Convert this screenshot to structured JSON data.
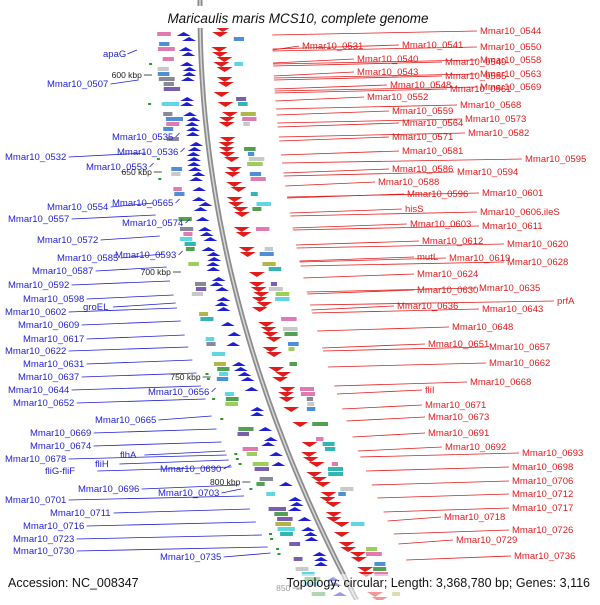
{
  "title": "Maricaulis maris MCS10, complete genome",
  "accession": "Accession: NC_008347",
  "topology": "Topology: circular; Length: 3,368,780 bp; Genes: 3,116",
  "colors": {
    "forward": "#1f1fd2",
    "reverse": "#e21b1b",
    "backbone": "#8c8c8c"
  },
  "ticks": [
    "600 kbp",
    "650 kbp",
    "700 kbp",
    "750 kbp",
    "800 kbp",
    "850"
  ],
  "left_labels": [
    "apaG",
    "Mmar10_0507",
    "Mmar10_0535",
    "Mmar10_0532",
    "Mmar10_0536",
    "Mmar10_0553",
    "Mmar10_0554",
    "Mmar10_0565",
    "Mmar10_0557",
    "Mmar10_0574",
    "Mmar10_0572",
    "Mmar10_0585",
    "Mmar10_0593",
    "Mmar10_0587",
    "Mmar10_0592",
    "Mmar10_0598",
    "groEL",
    "Mmar10_0602",
    "Mmar10_0609",
    "Mmar10_0617",
    "Mmar10_0622",
    "Mmar10_0631",
    "Mmar10_0637",
    "Mmar10_0644",
    "Mmar10_0656",
    "Mmar10_0652",
    "Mmar10_0665",
    "Mmar10_0669",
    "Mmar10_0674",
    "Mmar10_0678",
    "flhA",
    "fliH",
    "fliG-fliF",
    "Mmar10_0690",
    "Mmar10_0696",
    "Mmar10_0703",
    "Mmar10_0701",
    "Mmar10_0711",
    "Mmar10_0716",
    "Mmar10_0723",
    "Mmar10_0730",
    "Mmar10_0735"
  ],
  "right_labels": [
    "Mmar10_0544",
    "Mmar10_0531",
    "Mmar10_0541",
    "Mmar10_0550",
    "Mmar10_0540",
    "Mmar10_0549",
    "Mmar10_0558",
    "Mmar10_0543",
    "Mmar10_0555",
    "Mmar10_0563",
    "Mmar10_0548",
    "Mmar10_0569",
    "Mmar10_0561",
    "Mmar10_0552",
    "Mmar10_0568",
    "Mmar10_0559",
    "Mmar10_0573",
    "Mmar10_0564",
    "Mmar10_0582",
    "Mmar10_0571",
    "Mmar10_0581",
    "Mmar10_0595",
    "Mmar10_0586",
    "Mmar10_0594",
    "Mmar10_0588",
    "Mmar10_0596",
    "Mmar10_0601",
    "hisS",
    "Mmar10_0606.ileS",
    "Mmar10_0603",
    "Mmar10_0611",
    "Mmar10_0612",
    "Mmar10_0620",
    "mutL",
    "Mmar10_0619",
    "Mmar10_0628",
    "Mmar10_0624",
    "Mmar10_0635",
    "Mmar10_0630",
    "prfA",
    "Mmar10_0636",
    "Mmar10_0643",
    "Mmar10_0648",
    "Mmar10_0651",
    "Mmar10_0657",
    "Mmar10_0662",
    "Mmar10_0668",
    "fliI",
    "Mmar10_0671",
    "Mmar10_0673",
    "Mmar10_0691",
    "Mmar10_0692",
    "Mmar10_0693",
    "Mmar10_0698",
    "Mmar10_0706",
    "Mmar10_0712",
    "Mmar10_0717",
    "Mmar10_0718",
    "Mmar10_0726",
    "Mmar10_0729",
    "Mmar10_0736"
  ]
}
